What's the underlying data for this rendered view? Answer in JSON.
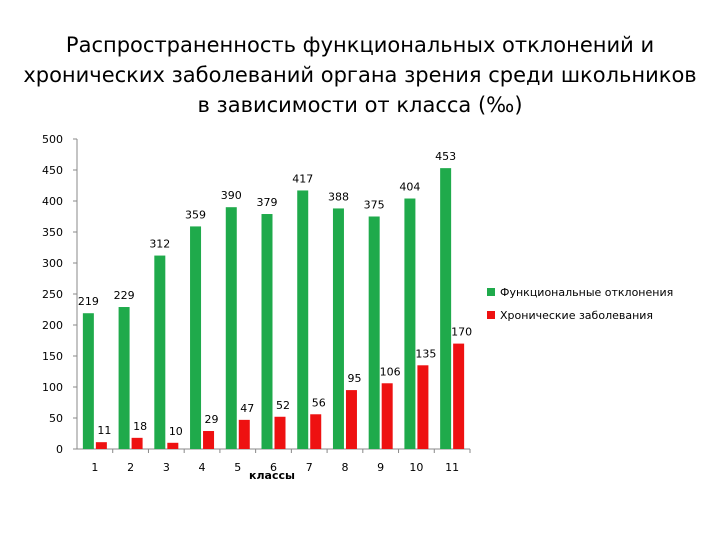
{
  "slide": {
    "title": "Распространенность функциональных отклонений и хронических заболеваний органа зрения среди школьников в зависимости от класса (‰)"
  },
  "colors": {
    "series1": "#1faa4b",
    "series2": "#ee1111",
    "axis": "#888888",
    "grid": "none"
  },
  "chart_data": {
    "type": "bar",
    "title": "",
    "xlabel": "классы",
    "ylabel": "",
    "ylim": [
      0,
      500
    ],
    "yticks": [
      0,
      50,
      100,
      150,
      200,
      250,
      300,
      350,
      400,
      450,
      500
    ],
    "grid": false,
    "legend_position": "right",
    "categories": [
      "1",
      "2",
      "3",
      "4",
      "5",
      "6",
      "7",
      "8",
      "9",
      "10",
      "11"
    ],
    "series": [
      {
        "name": "Функциональные отклонения",
        "values": [
          219,
          229,
          312,
          359,
          390,
          379,
          417,
          388,
          375,
          404,
          453
        ]
      },
      {
        "name": "Хронические заболевания",
        "values": [
          11,
          18,
          10,
          29,
          47,
          52,
          56,
          95,
          106,
          135,
          170
        ]
      }
    ]
  }
}
